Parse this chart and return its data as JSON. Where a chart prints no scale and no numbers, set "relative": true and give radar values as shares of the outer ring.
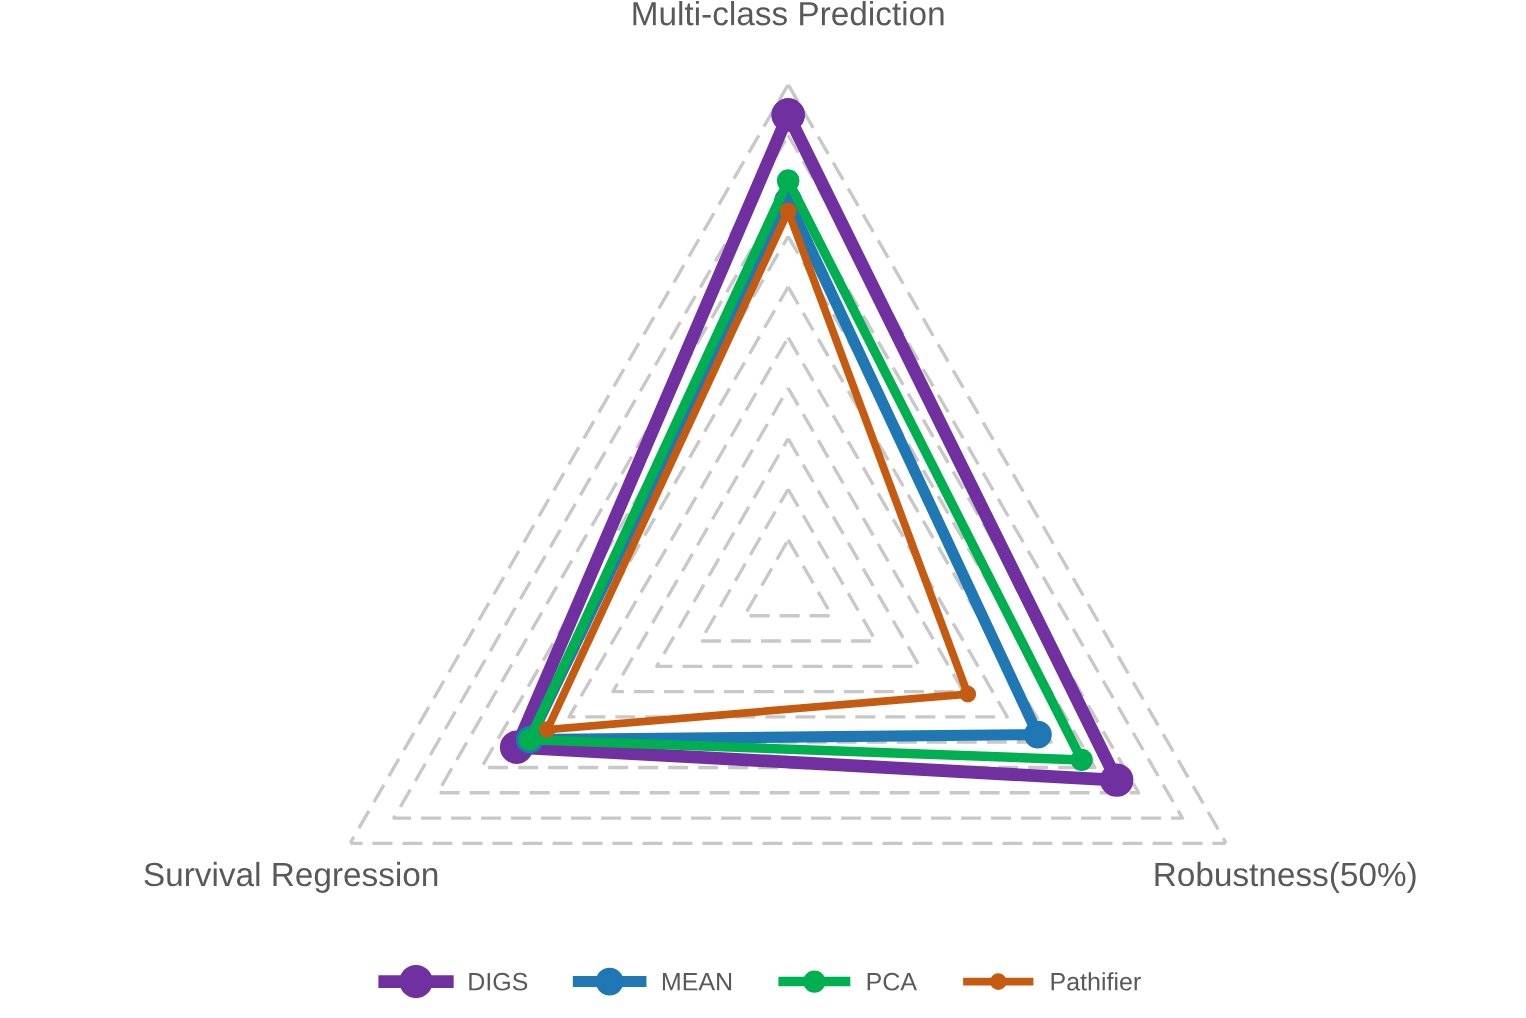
{
  "chart_data": {
    "type": "radar",
    "relative": true,
    "categories": [
      "Multi-class Prediction",
      "Robustness(50%)",
      "Survival Regression"
    ],
    "series": [
      {
        "name": "DIGS",
        "color": "#7030a0",
        "values": [
          0.94,
          0.75,
          0.62
        ]
      },
      {
        "name": "MEAN",
        "color": "#1f77b4",
        "values": [
          0.77,
          0.57,
          0.59
        ]
      },
      {
        "name": "PCA",
        "color": "#00b050",
        "values": [
          0.81,
          0.67,
          0.59
        ]
      },
      {
        "name": "Pathifier",
        "color": "#c55a11",
        "values": [
          0.75,
          0.41,
          0.55
        ]
      }
    ],
    "grid": true,
    "legend": "bottom",
    "marker": "circle",
    "line_style": "solid"
  }
}
